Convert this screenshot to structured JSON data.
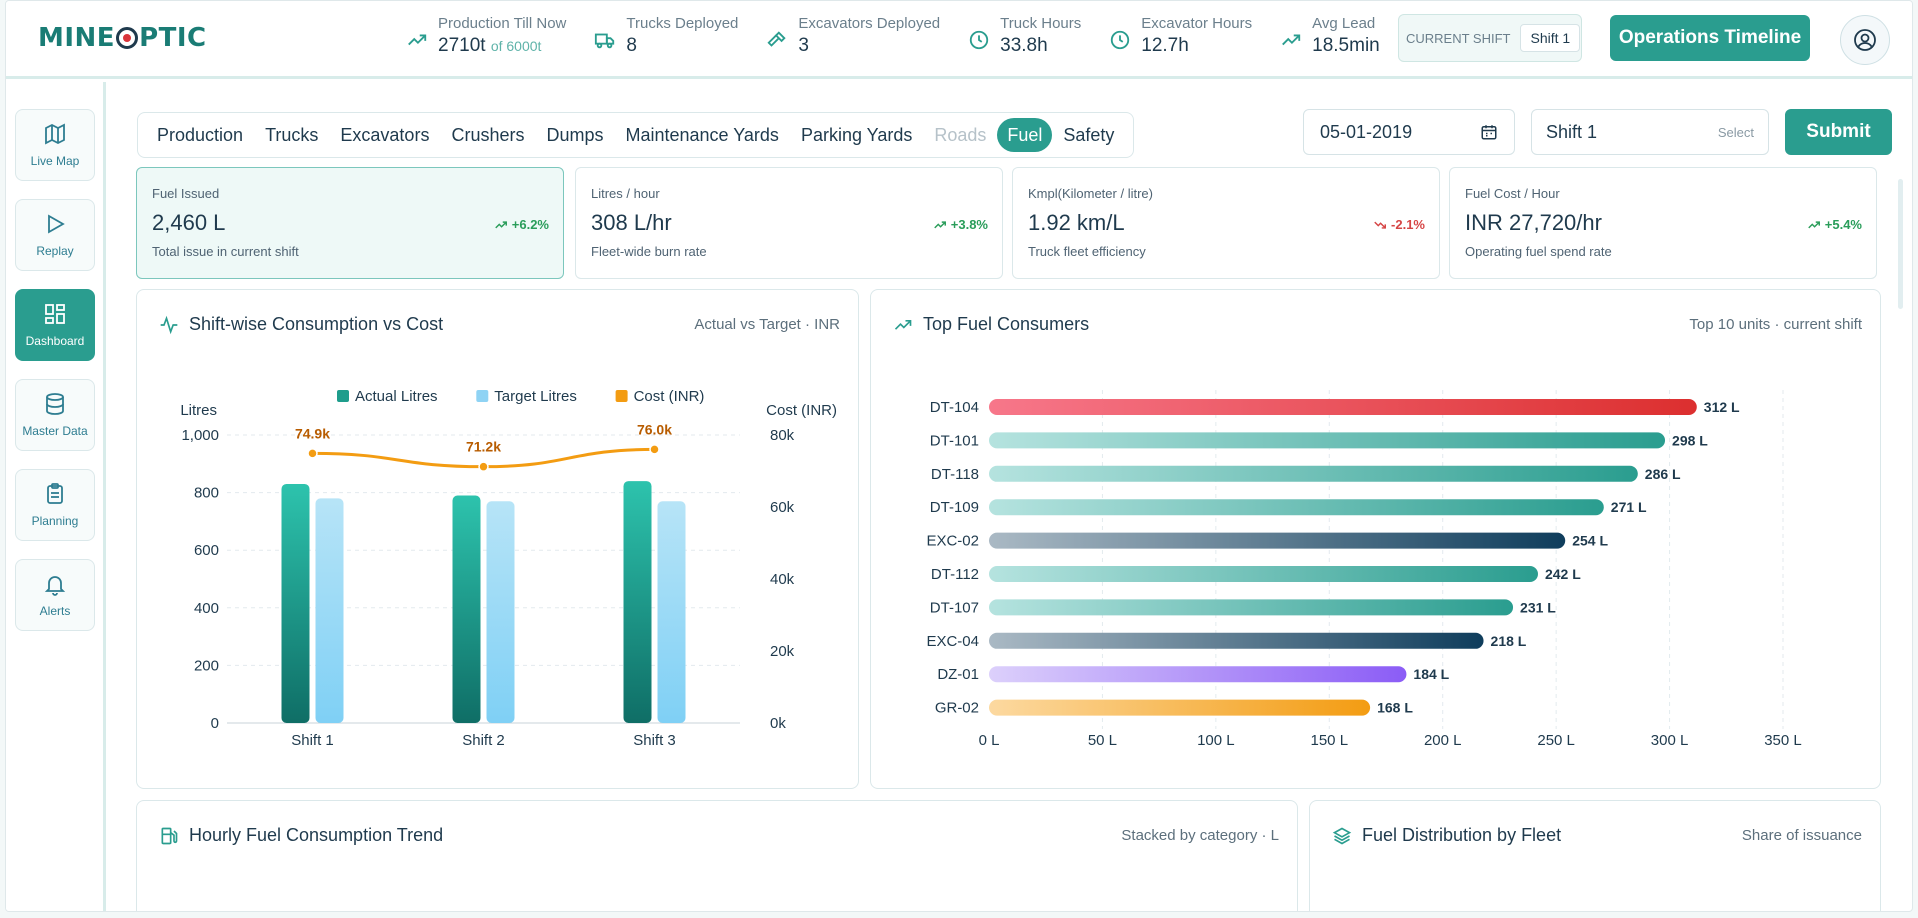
{
  "brand": {
    "name_left": "MINE",
    "name_right": "PTIC"
  },
  "header": {
    "kpis": [
      {
        "label": "Production Till Now",
        "value": "2710t",
        "suffix": "of 6000t",
        "icon": "trend-up-icon"
      },
      {
        "label": "Trucks Deployed",
        "value": "8",
        "suffix": "",
        "icon": "truck-icon"
      },
      {
        "label": "Excavators Deployed",
        "value": "3",
        "suffix": "",
        "icon": "hammer-icon"
      },
      {
        "label": "Truck Hours",
        "value": "33.8h",
        "suffix": "",
        "icon": "clock-icon"
      },
      {
        "label": "Excavator Hours",
        "value": "12.7h",
        "suffix": "",
        "icon": "clock-icon"
      },
      {
        "label": "Avg Lead",
        "value": "18.5min",
        "suffix": "",
        "icon": "trend-up-icon"
      }
    ],
    "current_shift_label": "CURRENT SHIFT",
    "current_shift_value": "Shift 1",
    "ops_button": "Operations Timeline"
  },
  "sidebar": {
    "items": [
      {
        "label": "Live Map",
        "icon": "map-icon"
      },
      {
        "label": "Replay",
        "icon": "play-icon"
      },
      {
        "label": "Dashboard",
        "icon": "dashboard-icon",
        "active": true
      },
      {
        "label": "Master Data",
        "icon": "database-icon"
      },
      {
        "label": "Planning",
        "icon": "clipboard-icon"
      },
      {
        "label": "Alerts",
        "icon": "bell-icon"
      }
    ]
  },
  "tabs": [
    "Production",
    "Trucks",
    "Excavators",
    "Crushers",
    "Dumps",
    "Maintenance Yards",
    "Parking Yards",
    "Roads",
    "Fuel",
    "Safety"
  ],
  "active_tab": "Fuel",
  "filters": {
    "date": "05-01-2019",
    "shift": "Shift 1",
    "shift_hint": "Select",
    "submit": "Submit"
  },
  "stats": [
    {
      "label": "Fuel Issued",
      "value": "2,460 L",
      "sub": "Total issue in current shift",
      "trend": "+6.2%",
      "direction": "up"
    },
    {
      "label": "Litres / hour",
      "value": "308 L/hr",
      "sub": "Fleet-wide burn rate",
      "trend": "+3.8%",
      "direction": "up"
    },
    {
      "label": "Kmpl(Kilometer / litre)",
      "value": "1.92 km/L",
      "sub": "Truck fleet efficiency",
      "trend": "-2.1%",
      "direction": "down"
    },
    {
      "label": "Fuel Cost / Hour",
      "value": "INR 27,720/hr",
      "sub": "Operating fuel spend rate",
      "trend": "+5.4%",
      "direction": "up"
    }
  ],
  "panels": {
    "consumption": {
      "title": "Shift-wise Consumption vs Cost",
      "note": "Actual vs Target · INR"
    },
    "consumers": {
      "title": "Top Fuel Consumers",
      "note": "Top 10 units · current shift"
    },
    "hourly": {
      "title": "Hourly Fuel Consumption Trend",
      "note": "Stacked by category · L"
    },
    "distribution": {
      "title": "Fuel Distribution by Fleet",
      "note": "Share of issuance"
    }
  },
  "chart_data": [
    {
      "type": "bar",
      "title": "Shift-wise Consumption vs Cost",
      "categories": [
        "Shift 1",
        "Shift 2",
        "Shift 3"
      ],
      "series": [
        {
          "name": "Actual Litres",
          "values": [
            830,
            790,
            840
          ],
          "color": "#1f9d8c"
        },
        {
          "name": "Target Litres",
          "values": [
            780,
            770,
            770
          ],
          "color": "#8fd3f4"
        },
        {
          "name": "Cost (INR)",
          "values": [
            74.9,
            71.2,
            76.0
          ],
          "labels": [
            "74.9k",
            "71.2k",
            "76.0k"
          ],
          "color": "#f39c12",
          "type": "line"
        }
      ],
      "ylabel": "Litres",
      "y2label": "Cost (INR)",
      "ylim": [
        0,
        1000
      ],
      "yticks": [
        "0",
        "200",
        "400",
        "600",
        "800",
        "1,000"
      ],
      "y2lim": [
        0,
        80
      ],
      "y2ticks": [
        "0k",
        "20k",
        "40k",
        "60k",
        "80k"
      ],
      "legend": "top",
      "grid": true
    },
    {
      "type": "bar",
      "orientation": "horizontal",
      "title": "Top Fuel Consumers",
      "categories": [
        "DT-104",
        "DT-101",
        "DT-118",
        "DT-109",
        "EXC-02",
        "DT-112",
        "DT-107",
        "EXC-04",
        "DZ-01",
        "GR-02"
      ],
      "values": [
        312,
        298,
        286,
        271,
        254,
        242,
        231,
        218,
        184,
        168
      ],
      "value_labels": [
        "312 L",
        "298 L",
        "286 L",
        "271 L",
        "254 L",
        "242 L",
        "231 L",
        "218 L",
        "184 L",
        "168 L"
      ],
      "xlim": [
        0,
        350
      ],
      "xticks": [
        "0 L",
        "50 L",
        "100 L",
        "150 L",
        "200 L",
        "250 L",
        "300 L",
        "350 L"
      ],
      "grid": true
    }
  ]
}
